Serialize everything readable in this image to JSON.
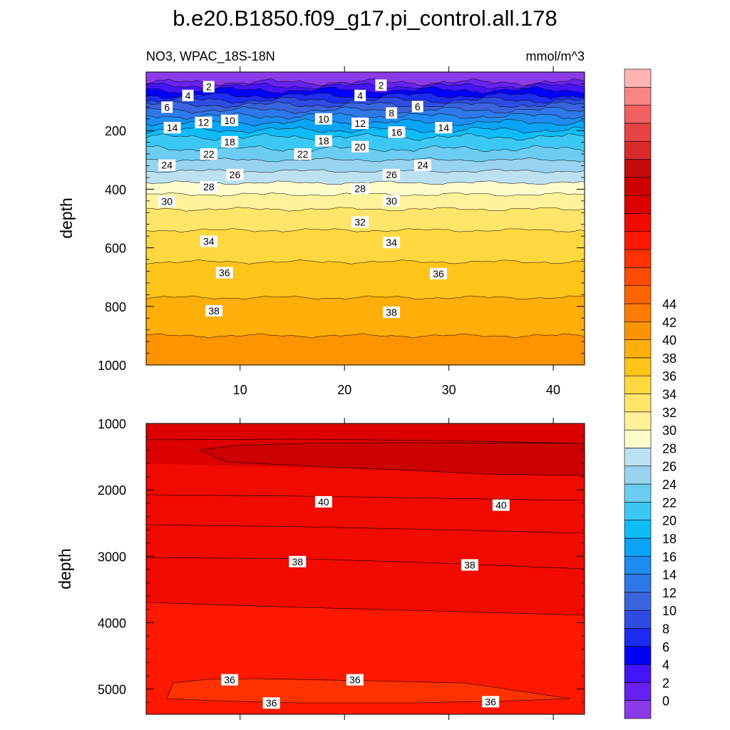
{
  "chart_data": {
    "type": "contour",
    "title": "b.e20.B1850.f09_g17.pi_control.all.178",
    "subtitle_left": "NO3, WPAC_18S-18N",
    "subtitle_right": "mmol/m^3",
    "ylabel": "depth",
    "x": {
      "range": [
        1,
        43
      ],
      "ticks": [
        10,
        20,
        30,
        40
      ],
      "tick_labels": [
        "10",
        "20",
        "30",
        "40"
      ]
    },
    "panels": [
      {
        "name": "upper",
        "ylim": [
          0,
          1000
        ],
        "inverted": true,
        "yticks": [
          200,
          400,
          600,
          800,
          1000
        ],
        "ytick_labels": [
          "200",
          "400",
          "600",
          "800",
          "1000"
        ],
        "contour_depths": [
          [
            0,
            35
          ],
          [
            2,
            48
          ],
          [
            4,
            62
          ],
          [
            6,
            80
          ],
          [
            8,
            96
          ],
          [
            10,
            112
          ],
          [
            12,
            130
          ],
          [
            14,
            150
          ],
          [
            16,
            172
          ],
          [
            18,
            198
          ],
          [
            20,
            222
          ],
          [
            22,
            262
          ],
          [
            24,
            300
          ],
          [
            26,
            338
          ],
          [
            28,
            378
          ],
          [
            30,
            418
          ],
          [
            32,
            468
          ],
          [
            34,
            540
          ],
          [
            36,
            648
          ],
          [
            38,
            770
          ],
          [
            40,
            900
          ]
        ],
        "labels": [
          {
            "x": 7,
            "y": 50,
            "text": "2"
          },
          {
            "x": 23.5,
            "y": 45,
            "text": "2"
          },
          {
            "x": 5,
            "y": 80,
            "text": "4"
          },
          {
            "x": 21.5,
            "y": 80,
            "text": "4"
          },
          {
            "x": 3,
            "y": 120,
            "text": "6"
          },
          {
            "x": 27,
            "y": 118,
            "text": "6"
          },
          {
            "x": 24.5,
            "y": 140,
            "text": "8"
          },
          {
            "x": 9,
            "y": 165,
            "text": "10"
          },
          {
            "x": 18,
            "y": 160,
            "text": "10"
          },
          {
            "x": 6.5,
            "y": 172,
            "text": "12"
          },
          {
            "x": 21.5,
            "y": 175,
            "text": "12"
          },
          {
            "x": 3.5,
            "y": 190,
            "text": "14"
          },
          {
            "x": 29.5,
            "y": 190,
            "text": "14"
          },
          {
            "x": 25,
            "y": 205,
            "text": "16"
          },
          {
            "x": 9,
            "y": 238,
            "text": "18"
          },
          {
            "x": 18,
            "y": 235,
            "text": "18"
          },
          {
            "x": 21.5,
            "y": 255,
            "text": "20"
          },
          {
            "x": 7,
            "y": 280,
            "text": "22"
          },
          {
            "x": 16,
            "y": 280,
            "text": "22"
          },
          {
            "x": 3,
            "y": 318,
            "text": "24"
          },
          {
            "x": 27.5,
            "y": 318,
            "text": "24"
          },
          {
            "x": 9.5,
            "y": 350,
            "text": "26"
          },
          {
            "x": 24.5,
            "y": 350,
            "text": "26"
          },
          {
            "x": 7,
            "y": 392,
            "text": "28"
          },
          {
            "x": 21.5,
            "y": 398,
            "text": "28"
          },
          {
            "x": 3,
            "y": 442,
            "text": "30"
          },
          {
            "x": 24.5,
            "y": 440,
            "text": "30"
          },
          {
            "x": 21.5,
            "y": 512,
            "text": "32"
          },
          {
            "x": 7,
            "y": 578,
            "text": "34"
          },
          {
            "x": 24.5,
            "y": 582,
            "text": "34"
          },
          {
            "x": 8.5,
            "y": 685,
            "text": "36"
          },
          {
            "x": 29,
            "y": 688,
            "text": "36"
          },
          {
            "x": 7.5,
            "y": 815,
            "text": "38"
          },
          {
            "x": 24.5,
            "y": 820,
            "text": "38"
          }
        ]
      },
      {
        "name": "lower",
        "ylim": [
          1000,
          5380
        ],
        "inverted": true,
        "yticks": [
          1000,
          2000,
          3000,
          4000,
          5000
        ],
        "ytick_labels": [
          "1000",
          "2000",
          "3000",
          "4000",
          "5000"
        ],
        "labels": [
          {
            "x": 18,
            "y": 2180,
            "text": "40"
          },
          {
            "x": 35,
            "y": 2230,
            "text": "40"
          },
          {
            "x": 15.5,
            "y": 3080,
            "text": "38"
          },
          {
            "x": 32,
            "y": 3130,
            "text": "38"
          },
          {
            "x": 9,
            "y": 4860,
            "text": "36"
          },
          {
            "x": 21,
            "y": 4860,
            "text": "36"
          },
          {
            "x": 13,
            "y": 5210,
            "text": "36"
          },
          {
            "x": 34,
            "y": 5190,
            "text": "36"
          }
        ]
      }
    ],
    "colorbar": {
      "levels_start": -2,
      "levels_step": 2,
      "tick_values": [
        0,
        2,
        4,
        6,
        8,
        10,
        12,
        14,
        16,
        18,
        20,
        22,
        24,
        26,
        28,
        30,
        32,
        34,
        36,
        38,
        40,
        42,
        44
      ],
      "tick_labels": [
        "0",
        "2",
        "4",
        "6",
        "8",
        "10",
        "12",
        "14",
        "16",
        "18",
        "20",
        "22",
        "24",
        "26",
        "28",
        "30",
        "32",
        "34",
        "36",
        "38",
        "40",
        "42",
        "44"
      ],
      "colors": [
        "#8a3ae6",
        "#6622ee",
        "#4414f8",
        "#0000ff",
        "#1c2cf0",
        "#2e4ce0",
        "#3a64dc",
        "#2e78e8",
        "#1e8cf0",
        "#0aa4f4",
        "#10bcf8",
        "#3cc8f4",
        "#6cccf2",
        "#98d4f0",
        "#bce2f2",
        "#fffccc",
        "#fff29a",
        "#ffe66a",
        "#ffd840",
        "#ffc41a",
        "#ffae0a",
        "#ff9400",
        "#ff7c00",
        "#ff6400",
        "#ff4c00",
        "#ff3200",
        "#ff1800",
        "#f00a00",
        "#dc0000",
        "#cc0000",
        "#c40a0a",
        "#d82a2a",
        "#e64444",
        "#f06060",
        "#fa8484",
        "#ffb4b4"
      ]
    }
  }
}
